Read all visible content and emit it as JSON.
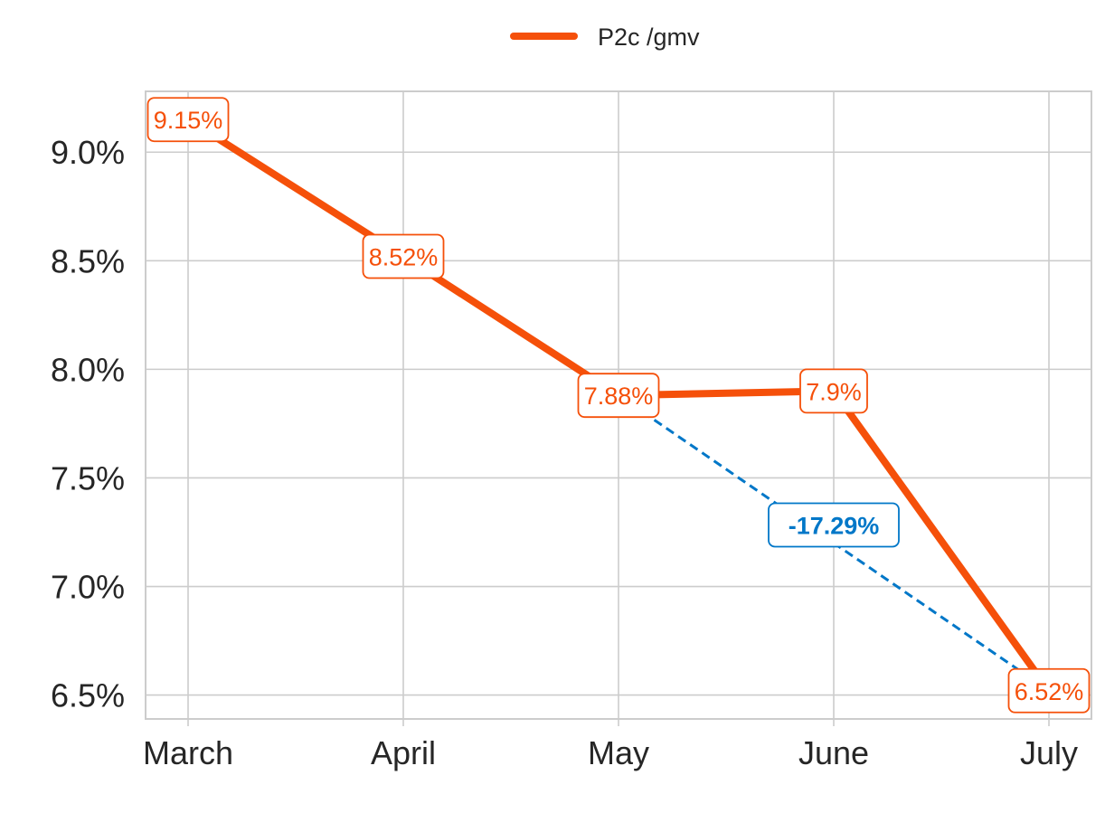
{
  "chart_data": {
    "type": "line",
    "categories": [
      "March",
      "April",
      "May",
      "June",
      "July"
    ],
    "series": [
      {
        "name": "P2c /gmv",
        "values": [
          9.15,
          8.52,
          7.88,
          7.9,
          6.52
        ],
        "labels": [
          "9.15%",
          "8.52%",
          "7.88%",
          "7.9%",
          "6.52%"
        ],
        "color": "#F5500A"
      }
    ],
    "y_ticks": [
      {
        "value": 6.5,
        "label": "6.5%"
      },
      {
        "value": 7.0,
        "label": "7.0%"
      },
      {
        "value": 7.5,
        "label": "7.5%"
      },
      {
        "value": 8.0,
        "label": "8.0%"
      },
      {
        "value": 8.5,
        "label": "8.5%"
      },
      {
        "value": 9.0,
        "label": "9.0%"
      }
    ],
    "ylim": [
      6.39,
      9.28
    ],
    "grid": true,
    "legend_position": "top-center",
    "annotation": {
      "text": "-17.29%",
      "from_category": "May",
      "to_category": "July",
      "color": "#0077C8"
    }
  }
}
